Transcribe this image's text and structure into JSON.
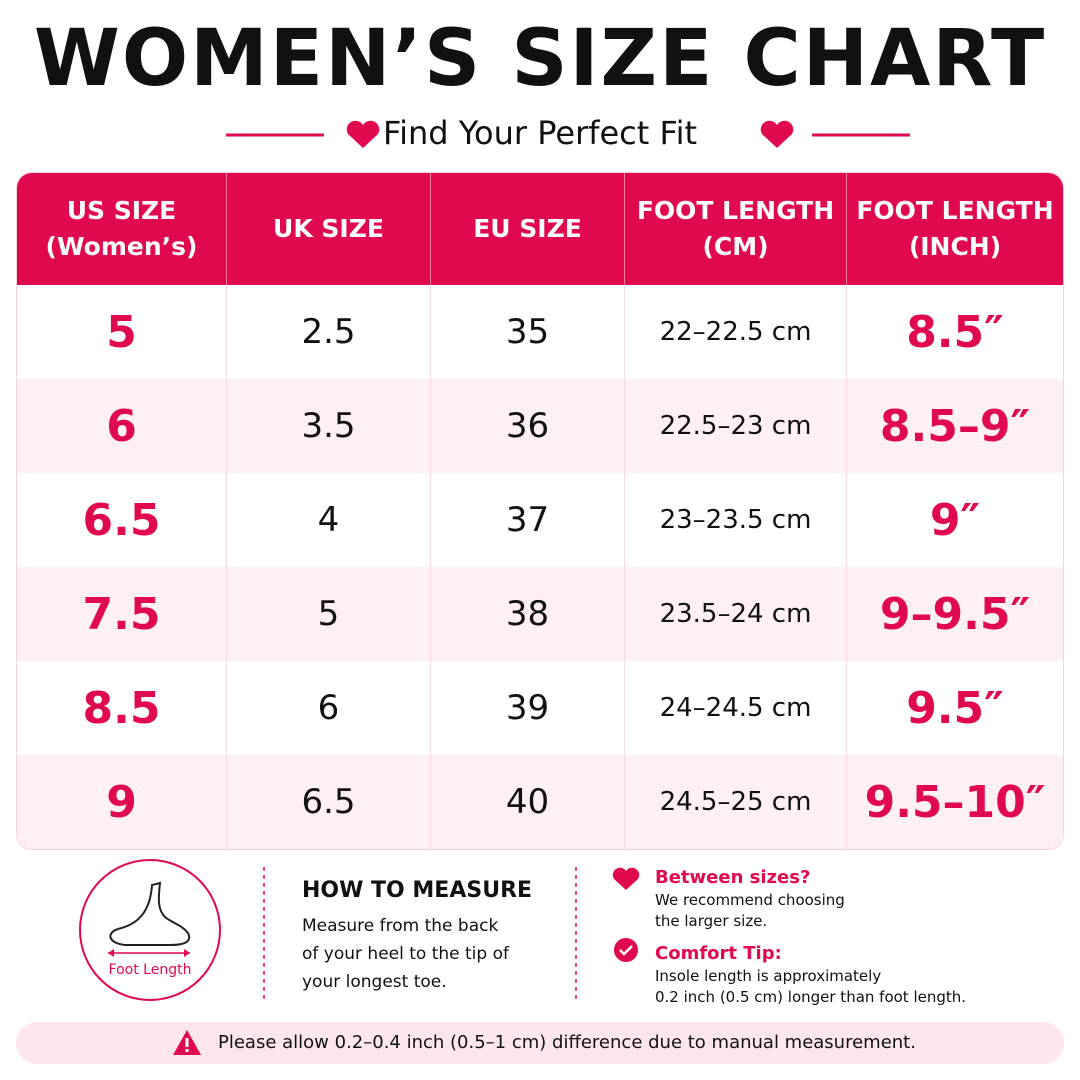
{
  "header": {
    "title": "WOMEN’S SIZE CHART",
    "subtitle": "Find Your Perfect Fit"
  },
  "table": {
    "headers": [
      [
        "US SIZE",
        "(Women’s)"
      ],
      [
        "UK SIZE"
      ],
      [
        "EU SIZE"
      ],
      [
        "FOOT LENGTH",
        "(CM)"
      ],
      [
        "FOOT LENGTH",
        "(INCH)"
      ]
    ],
    "rows": [
      [
        "5",
        "2.5",
        "35",
        "22–22.5 cm",
        "8.5″"
      ],
      [
        "6",
        "3.5",
        "36",
        "22.5–23 cm",
        "8.5–9″"
      ],
      [
        "6.5",
        "4",
        "37",
        "23–23.5 cm",
        "9″"
      ],
      [
        "7.5",
        "5",
        "38",
        "23.5–24 cm",
        "9–9.5″"
      ],
      [
        "8.5",
        "6",
        "39",
        "24–24.5 cm",
        "9.5″"
      ],
      [
        "9",
        "6.5",
        "40",
        "24.5–25 cm",
        "9.5–10″"
      ]
    ]
  },
  "measure": {
    "diagram_label": "Foot Length",
    "title": "HOW TO MEASURE",
    "lines": [
      "Measure from the back",
      "of your heel to the tip of",
      "your longest toe."
    ]
  },
  "tips": [
    {
      "title": "Between sizes?",
      "lines": [
        "We recommend choosing",
        "the larger size."
      ]
    },
    {
      "title": "Comfort Tip:",
      "lines": [
        "Insole length is approximately",
        "0.2 inch (0.5 cm) longer than foot length."
      ]
    }
  ],
  "footer": {
    "note": "Please allow 0.2–0.4 inch (0.5–1 cm) difference due to manual measurement."
  }
}
